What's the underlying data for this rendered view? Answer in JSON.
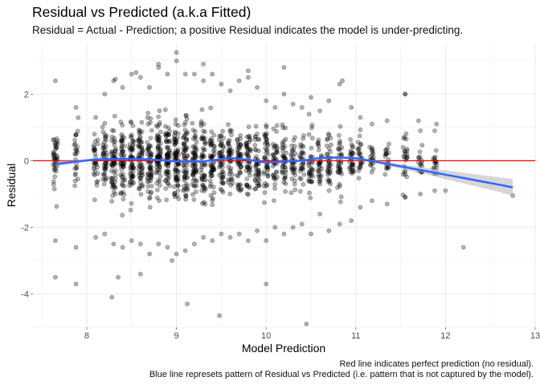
{
  "chart_data": {
    "type": "scatter",
    "title": "Residual vs Predicted (a.k.a Fitted)",
    "subtitle": "Residual = Actual - Prediction; a positive Residual indicates the model is under-predicting.",
    "xlabel": "Model Prediction",
    "ylabel": "Residual",
    "xlim": [
      7.4,
      13.0
    ],
    "ylim": [
      -5.0,
      3.5
    ],
    "x_ticks": [
      8,
      9,
      10,
      11,
      12,
      13
    ],
    "y_ticks": [
      -4,
      -2,
      0,
      2
    ],
    "grid": true,
    "reference_line": {
      "y": 0,
      "color": "#ff0000"
    },
    "point_color": "#000000",
    "point_opacity": 0.3,
    "columns": [
      {
        "x": 7.65,
        "min": -2.4,
        "max": 2.4,
        "n": 40
      },
      {
        "x": 7.88,
        "min": -2.6,
        "max": 1.6,
        "n": 25
      },
      {
        "x": 8.1,
        "min": -2.3,
        "max": 1.3,
        "n": 30
      },
      {
        "x": 8.2,
        "min": -2.2,
        "max": 2.0,
        "n": 45
      },
      {
        "x": 8.3,
        "min": -2.5,
        "max": 2.4,
        "n": 60
      },
      {
        "x": 8.4,
        "min": -2.6,
        "max": 2.2,
        "n": 55
      },
      {
        "x": 8.5,
        "min": -2.4,
        "max": 2.6,
        "n": 60
      },
      {
        "x": 8.6,
        "min": -2.5,
        "max": 2.5,
        "n": 60
      },
      {
        "x": 8.7,
        "min": -2.8,
        "max": 2.2,
        "n": 60
      },
      {
        "x": 8.8,
        "min": -2.5,
        "max": 2.8,
        "n": 70
      },
      {
        "x": 8.9,
        "min": -2.6,
        "max": 2.6,
        "n": 65
      },
      {
        "x": 9.0,
        "min": -2.8,
        "max": 3.0,
        "n": 75
      },
      {
        "x": 9.1,
        "min": -2.7,
        "max": 2.6,
        "n": 65
      },
      {
        "x": 9.2,
        "min": -2.5,
        "max": 2.6,
        "n": 60
      },
      {
        "x": 9.3,
        "min": -2.3,
        "max": 2.4,
        "n": 55
      },
      {
        "x": 9.4,
        "min": -2.4,
        "max": 2.6,
        "n": 55
      },
      {
        "x": 9.5,
        "min": -2.2,
        "max": 2.3,
        "n": 50
      },
      {
        "x": 9.6,
        "min": -2.3,
        "max": 2.1,
        "n": 45
      },
      {
        "x": 9.7,
        "min": -2.2,
        "max": 2.4,
        "n": 50
      },
      {
        "x": 9.8,
        "min": -2.4,
        "max": 2.5,
        "n": 50
      },
      {
        "x": 9.9,
        "min": -2.1,
        "max": 2.2,
        "n": 45
      },
      {
        "x": 10.0,
        "min": -2.4,
        "max": 1.8,
        "n": 45
      },
      {
        "x": 10.1,
        "min": -2.0,
        "max": 1.6,
        "n": 40
      },
      {
        "x": 10.2,
        "min": -2.2,
        "max": 2.0,
        "n": 40
      },
      {
        "x": 10.3,
        "min": -2.0,
        "max": 1.7,
        "n": 35
      },
      {
        "x": 10.4,
        "min": -1.9,
        "max": 1.6,
        "n": 30
      },
      {
        "x": 10.5,
        "min": -2.2,
        "max": 1.9,
        "n": 35
      },
      {
        "x": 10.6,
        "min": -1.6,
        "max": 1.5,
        "n": 30
      },
      {
        "x": 10.7,
        "min": -2.1,
        "max": 1.8,
        "n": 35
      },
      {
        "x": 10.82,
        "min": -1.9,
        "max": 2.3,
        "n": 35
      },
      {
        "x": 10.95,
        "min": -1.8,
        "max": 1.6,
        "n": 30
      },
      {
        "x": 11.05,
        "min": -1.4,
        "max": 1.3,
        "n": 25
      },
      {
        "x": 11.18,
        "min": -1.2,
        "max": 1.1,
        "n": 20
      },
      {
        "x": 11.35,
        "min": -1.3,
        "max": 1.2,
        "n": 20
      },
      {
        "x": 11.55,
        "min": -1.1,
        "max": 2.0,
        "n": 25
      },
      {
        "x": 11.72,
        "min": -1.0,
        "max": 0.9,
        "n": 15
      },
      {
        "x": 11.88,
        "min": -0.9,
        "max": 0.9,
        "n": 15
      }
    ],
    "scattered_points": [
      [
        7.65,
        -3.5
      ],
      [
        7.88,
        -3.7
      ],
      [
        8.28,
        -4.1
      ],
      [
        8.35,
        -3.5
      ],
      [
        8.6,
        -3.4
      ],
      [
        9.12,
        -4.3
      ],
      [
        8.95,
        -3.0
      ],
      [
        9.48,
        -4.65
      ],
      [
        10.45,
        -4.9
      ],
      [
        10.0,
        -3.7
      ],
      [
        9.0,
        3.25
      ],
      [
        8.32,
        2.45
      ],
      [
        9.3,
        2.9
      ],
      [
        10.2,
        2.8
      ],
      [
        11.55,
        2.0
      ],
      [
        12.2,
        -2.6
      ],
      [
        12.75,
        -1.05
      ],
      [
        12.0,
        -0.9
      ],
      [
        11.9,
        1.1
      ],
      [
        11.7,
        1.2
      ],
      [
        10.85,
        2.4
      ],
      [
        9.8,
        2.7
      ],
      [
        8.55,
        2.65
      ],
      [
        8.8,
        2.9
      ]
    ],
    "smooth_line": {
      "color": "#3366ff",
      "x": [
        7.65,
        7.9,
        8.1,
        8.4,
        8.7,
        9.0,
        9.3,
        9.6,
        9.8,
        10.0,
        10.2,
        10.4,
        10.6,
        10.8,
        11.0,
        11.2,
        11.4,
        11.6,
        11.8,
        12.0,
        12.2,
        12.4,
        12.6,
        12.75
      ],
      "y": [
        -0.1,
        -0.02,
        0.04,
        0.06,
        0.04,
        -0.02,
        -0.02,
        0.08,
        0.03,
        -0.06,
        -0.02,
        0.0,
        0.08,
        0.1,
        0.07,
        -0.02,
        -0.12,
        -0.22,
        -0.32,
        -0.42,
        -0.52,
        -0.62,
        -0.72,
        -0.8
      ],
      "band_half_width": [
        0.08,
        0.05,
        0.03,
        0.02,
        0.02,
        0.02,
        0.02,
        0.02,
        0.02,
        0.02,
        0.02,
        0.03,
        0.03,
        0.04,
        0.04,
        0.05,
        0.06,
        0.08,
        0.1,
        0.13,
        0.16,
        0.19,
        0.22,
        0.25
      ]
    },
    "captions": [
      "Red line indicates perfect prediction (no residual).",
      "Blue line represets pattern of Residual vs Predicted (i.e. pattern that is not captured by the model)."
    ]
  }
}
